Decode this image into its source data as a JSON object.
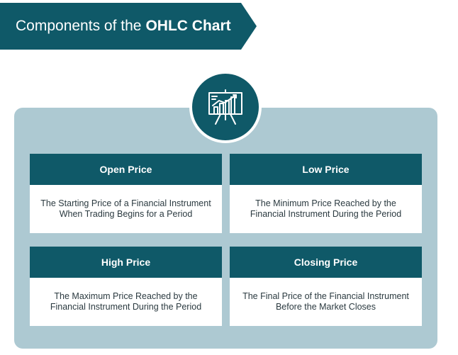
{
  "header": {
    "title_prefix": "Components of the",
    "title_bold": "OHLC Chart"
  },
  "icon": {
    "name": "presentation-chart-icon",
    "color": "#0f5968"
  },
  "cards": [
    {
      "title": "Open Price",
      "description": "The Starting Price of a Financial Instrument When Trading Begins for a Period"
    },
    {
      "title": "Low Price",
      "description": "The Minimum Price Reached by the Financial Instrument During the Period"
    },
    {
      "title": "High Price",
      "description": "The Maximum Price Reached by the Financial Instrument During the Period"
    },
    {
      "title": "Closing Price",
      "description": "The Final Price of the Financial Instrument Before the Market Closes"
    }
  ],
  "colors": {
    "accent": "#0f5968",
    "panel": "#adc9d2"
  }
}
